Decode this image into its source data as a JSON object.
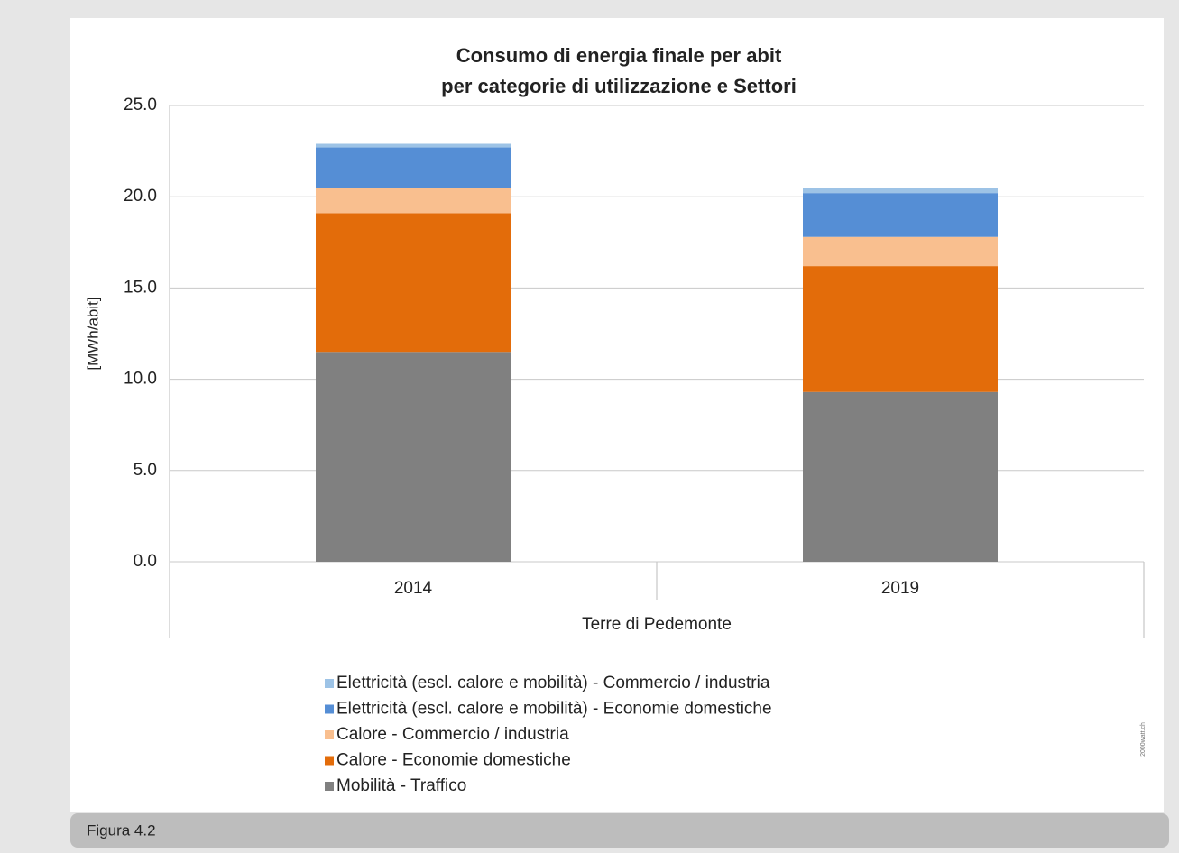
{
  "chart_data": {
    "type": "stacked_bar",
    "title": [
      "Consumo di energia finale per abit",
      "per categorie di utilizzazione e Settori"
    ],
    "y_label": "[MWh/abit]",
    "x_label": "Terre di Pedemonte",
    "categories": [
      "2014",
      "2019"
    ],
    "series": [
      {
        "name": "Mobilità - Traffico",
        "color": "#808080",
        "values": [
          11.5,
          9.3
        ]
      },
      {
        "name": "Calore - Economie domestiche",
        "color": "#e36c0a",
        "values": [
          7.6,
          6.9
        ]
      },
      {
        "name": "Calore - Commercio / industria",
        "color": "#f9bf8f",
        "values": [
          1.4,
          1.6
        ]
      },
      {
        "name": "Elettricità (escl. calore e mobilità) - Economie domestiche",
        "color": "#558ed5",
        "values": [
          2.2,
          2.4
        ]
      },
      {
        "name": "Elettricità (escl. calore e mobilità) - Commercio / industria",
        "color": "#9dc3e6",
        "values": [
          0.2,
          0.3
        ]
      }
    ],
    "ylim": [
      0,
      25
    ],
    "yticks": [
      {
        "value": 0,
        "label": "0.0"
      },
      {
        "value": 5,
        "label": "5.0"
      },
      {
        "value": 10,
        "label": "10.0"
      },
      {
        "value": 15,
        "label": "15.0"
      },
      {
        "value": 20,
        "label": "20.0"
      },
      {
        "value": 25,
        "label": "25.0"
      }
    ],
    "grid": true,
    "watermark": "2000watt.ch"
  },
  "caption": "Figura 4.2"
}
